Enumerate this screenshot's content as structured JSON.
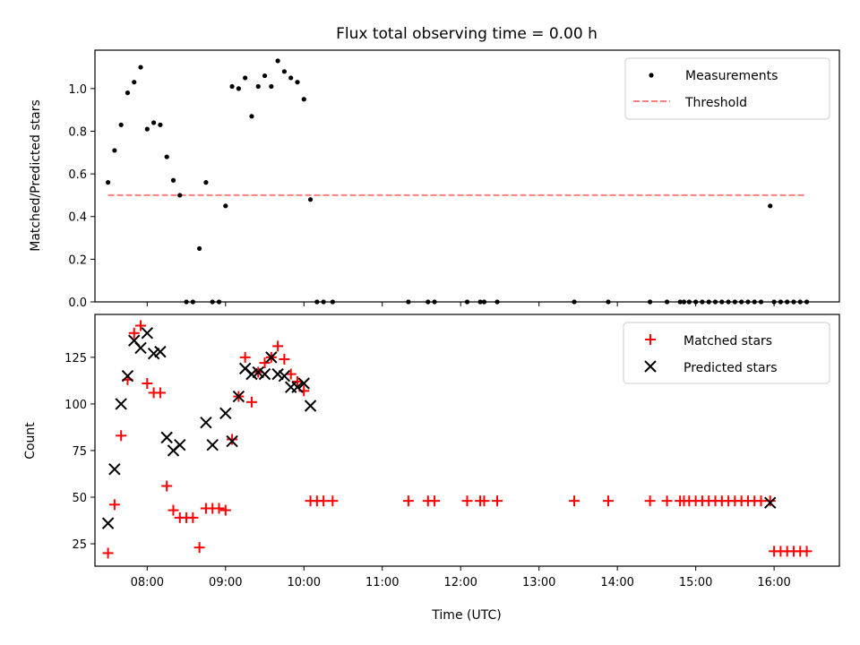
{
  "chart_data": [
    {
      "type": "scatter",
      "title": "Flux total observing time = 0.00 h",
      "xlabel": "",
      "ylabel": "Matched/Predicted stars",
      "xlim": [
        "07:20",
        "16:50"
      ],
      "ylim": [
        0,
        1.18
      ],
      "yticks": [
        "0.0",
        "0.2",
        "0.4",
        "0.6",
        "0.8",
        "1.0"
      ],
      "legend": {
        "placement": "top-right",
        "entries": [
          "Measurements",
          "Threshold"
        ]
      },
      "colors": {
        "measurements": "#000000",
        "threshold": "#ff7f7f"
      },
      "threshold": {
        "name": "Threshold",
        "value": 0.5,
        "x": [
          "07:30",
          "16:25"
        ]
      },
      "series": [
        {
          "name": "Measurements",
          "points": [
            [
              "07:30",
              0.56
            ],
            [
              "07:35",
              0.71
            ],
            [
              "07:40",
              0.83
            ],
            [
              "07:45",
              0.98
            ],
            [
              "07:50",
              1.03
            ],
            [
              "07:55",
              1.1
            ],
            [
              "08:00",
              0.81
            ],
            [
              "08:05",
              0.84
            ],
            [
              "08:10",
              0.83
            ],
            [
              "08:15",
              0.68
            ],
            [
              "08:20",
              0.57
            ],
            [
              "08:25",
              0.5
            ],
            [
              "08:30",
              0.0
            ],
            [
              "08:35",
              0.0
            ],
            [
              "08:40",
              0.25
            ],
            [
              "08:45",
              0.56
            ],
            [
              "08:50",
              0.0
            ],
            [
              "08:55",
              0.0
            ],
            [
              "09:00",
              0.45
            ],
            [
              "09:05",
              1.01
            ],
            [
              "09:10",
              1.0
            ],
            [
              "09:15",
              1.05
            ],
            [
              "09:20",
              0.87
            ],
            [
              "09:25",
              1.01
            ],
            [
              "09:30",
              1.06
            ],
            [
              "09:35",
              1.01
            ],
            [
              "09:40",
              1.13
            ],
            [
              "09:45",
              1.08
            ],
            [
              "09:50",
              1.05
            ],
            [
              "09:55",
              1.03
            ],
            [
              "10:00",
              0.95
            ],
            [
              "10:05",
              0.48
            ],
            [
              "10:10",
              0.0
            ],
            [
              "10:15",
              0.0
            ],
            [
              "10:22",
              0.0
            ],
            [
              "11:20",
              0.0
            ],
            [
              "11:35",
              0.0
            ],
            [
              "11:40",
              0.0
            ],
            [
              "12:05",
              0.0
            ],
            [
              "12:15",
              0.0
            ],
            [
              "12:18",
              0.0
            ],
            [
              "12:28",
              0.0
            ],
            [
              "13:27",
              0.0
            ],
            [
              "13:53",
              0.0
            ],
            [
              "14:25",
              0.0
            ],
            [
              "14:38",
              0.0
            ],
            [
              "14:48",
              0.0
            ],
            [
              "14:51",
              0.0
            ],
            [
              "14:55",
              0.0
            ],
            [
              "15:00",
              0.0
            ],
            [
              "15:05",
              0.0
            ],
            [
              "15:10",
              0.0
            ],
            [
              "15:15",
              0.0
            ],
            [
              "15:20",
              0.0
            ],
            [
              "15:25",
              0.0
            ],
            [
              "15:30",
              0.0
            ],
            [
              "15:35",
              0.0
            ],
            [
              "15:40",
              0.0
            ],
            [
              "15:45",
              0.0
            ],
            [
              "15:50",
              0.0
            ],
            [
              "15:57",
              0.45
            ],
            [
              "16:00",
              0.0
            ],
            [
              "16:05",
              0.0
            ],
            [
              "16:10",
              0.0
            ],
            [
              "16:15",
              0.0
            ],
            [
              "16:20",
              0.0
            ],
            [
              "16:25",
              0.0
            ]
          ]
        }
      ]
    },
    {
      "type": "scatter",
      "title": "",
      "xlabel": "Time (UTC)",
      "ylabel": "Count",
      "xlim": [
        "07:20",
        "16:50"
      ],
      "ylim": [
        13,
        148
      ],
      "xticks": [
        "08:00",
        "09:00",
        "10:00",
        "11:00",
        "12:00",
        "13:00",
        "14:00",
        "15:00",
        "16:00"
      ],
      "yticks": [
        "25",
        "50",
        "75",
        "100",
        "125"
      ],
      "legend": {
        "placement": "top-right",
        "entries": [
          "Matched stars",
          "Predicted stars"
        ]
      },
      "colors": {
        "matched": "#ff0000",
        "predicted": "#000000"
      },
      "series": [
        {
          "name": "Matched stars",
          "marker": "plus",
          "points": [
            [
              "07:30",
              20
            ],
            [
              "07:35",
              46
            ],
            [
              "07:40",
              83
            ],
            [
              "07:45",
              113
            ],
            [
              "07:50",
              138
            ],
            [
              "07:55",
              142
            ],
            [
              "08:00",
              111
            ],
            [
              "08:05",
              106
            ],
            [
              "08:10",
              106
            ],
            [
              "08:15",
              56
            ],
            [
              "08:20",
              43
            ],
            [
              "08:25",
              39
            ],
            [
              "08:30",
              39
            ],
            [
              "08:35",
              39
            ],
            [
              "08:40",
              23
            ],
            [
              "08:45",
              44
            ],
            [
              "08:50",
              44
            ],
            [
              "08:55",
              44
            ],
            [
              "09:00",
              43
            ],
            [
              "09:05",
              81
            ],
            [
              "09:10",
              104
            ],
            [
              "09:15",
              125
            ],
            [
              "09:20",
              101
            ],
            [
              "09:25",
              117
            ],
            [
              "09:30",
              122
            ],
            [
              "09:35",
              125
            ],
            [
              "09:40",
              131
            ],
            [
              "09:45",
              124
            ],
            [
              "09:50",
              116
            ],
            [
              "09:55",
              112
            ],
            [
              "10:00",
              107
            ],
            [
              "10:05",
              48
            ],
            [
              "10:10",
              48
            ],
            [
              "10:15",
              48
            ],
            [
              "10:22",
              48
            ],
            [
              "11:20",
              48
            ],
            [
              "11:35",
              48
            ],
            [
              "11:40",
              48
            ],
            [
              "12:05",
              48
            ],
            [
              "12:15",
              48
            ],
            [
              "12:18",
              48
            ],
            [
              "12:28",
              48
            ],
            [
              "13:27",
              48
            ],
            [
              "13:53",
              48
            ],
            [
              "14:25",
              48
            ],
            [
              "14:38",
              48
            ],
            [
              "14:48",
              48
            ],
            [
              "14:51",
              48
            ],
            [
              "14:55",
              48
            ],
            [
              "15:00",
              48
            ],
            [
              "15:05",
              48
            ],
            [
              "15:10",
              48
            ],
            [
              "15:15",
              48
            ],
            [
              "15:20",
              48
            ],
            [
              "15:25",
              48
            ],
            [
              "15:30",
              48
            ],
            [
              "15:35",
              48
            ],
            [
              "15:40",
              48
            ],
            [
              "15:45",
              48
            ],
            [
              "15:50",
              48
            ],
            [
              "15:57",
              48
            ],
            [
              "16:00",
              21
            ],
            [
              "16:05",
              21
            ],
            [
              "16:10",
              21
            ],
            [
              "16:15",
              21
            ],
            [
              "16:20",
              21
            ],
            [
              "16:25",
              21
            ]
          ]
        },
        {
          "name": "Predicted stars",
          "marker": "x",
          "points": [
            [
              "07:30",
              36
            ],
            [
              "07:35",
              65
            ],
            [
              "07:40",
              100
            ],
            [
              "07:45",
              115
            ],
            [
              "07:50",
              134
            ],
            [
              "07:55",
              130
            ],
            [
              "08:00",
              138
            ],
            [
              "08:05",
              127
            ],
            [
              "08:10",
              128
            ],
            [
              "08:15",
              82
            ],
            [
              "08:20",
              75
            ],
            [
              "08:25",
              78
            ],
            [
              "08:45",
              90
            ],
            [
              "08:50",
              78
            ],
            [
              "09:00",
              95
            ],
            [
              "09:05",
              80
            ],
            [
              "09:10",
              104
            ],
            [
              "09:15",
              119
            ],
            [
              "09:20",
              116
            ],
            [
              "09:25",
              117
            ],
            [
              "09:30",
              116
            ],
            [
              "09:35",
              125
            ],
            [
              "09:40",
              116
            ],
            [
              "09:45",
              115
            ],
            [
              "09:50",
              109
            ],
            [
              "09:55",
              109
            ],
            [
              "10:00",
              111
            ],
            [
              "10:05",
              99
            ],
            [
              "15:57",
              47
            ]
          ]
        }
      ]
    }
  ]
}
